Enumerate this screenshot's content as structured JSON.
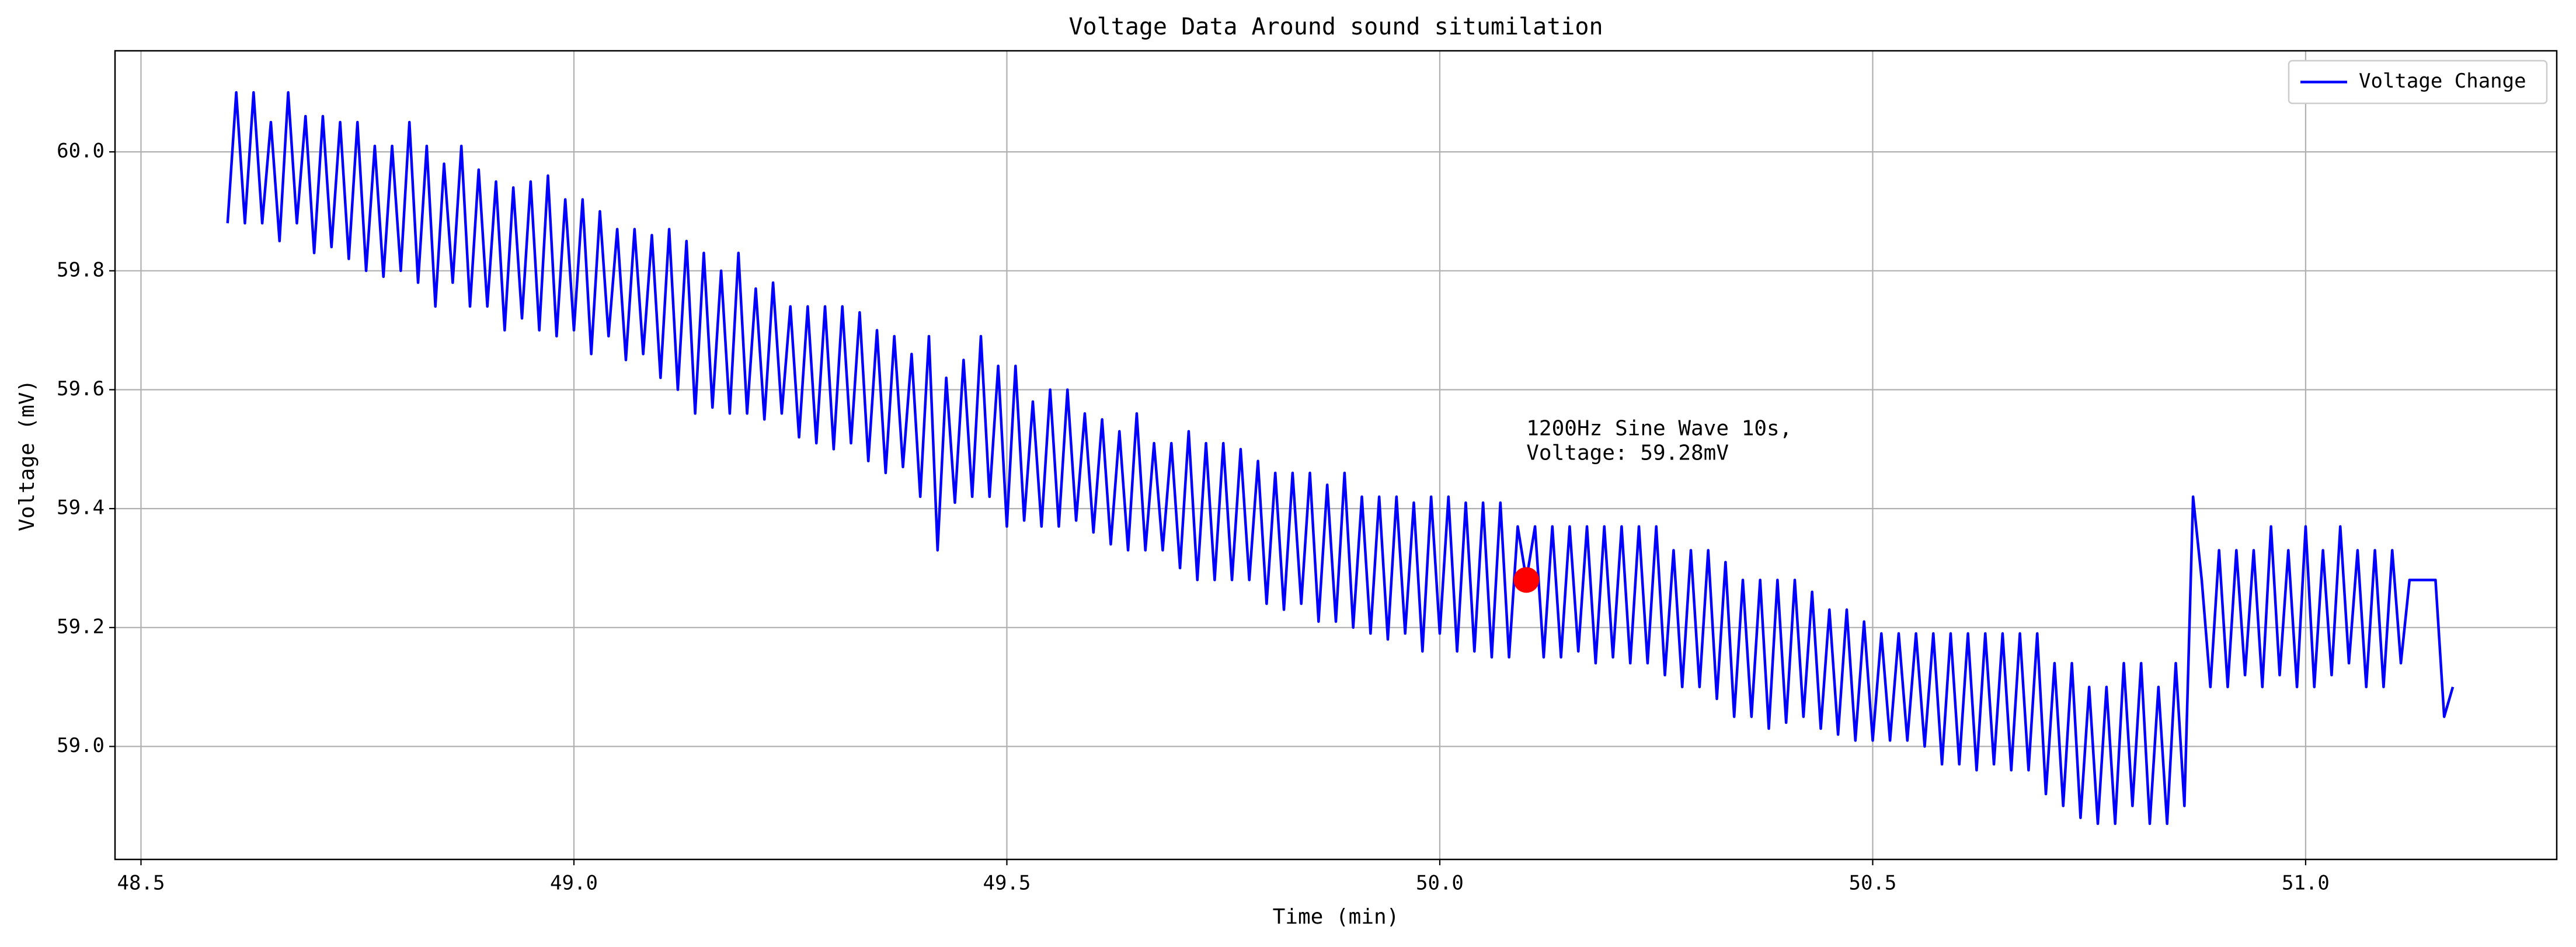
{
  "chart_data": {
    "type": "line",
    "title": "Voltage Data Around sound situmilation",
    "x_label": "Time (min)",
    "y_label": "Voltage (mV)",
    "x": [
      48.6,
      48.61,
      48.62,
      48.63,
      48.64,
      48.65,
      48.66,
      48.67,
      48.68,
      48.69,
      48.7,
      48.71,
      48.72,
      48.73,
      48.74,
      48.75,
      48.76,
      48.77,
      48.78,
      48.79,
      48.8,
      48.81,
      48.82,
      48.83,
      48.84,
      48.85,
      48.86,
      48.87,
      48.88,
      48.89,
      48.9,
      48.91,
      48.92,
      48.93,
      48.94,
      48.95,
      48.96,
      48.97,
      48.98,
      48.99,
      49.0,
      49.01,
      49.02,
      49.03,
      49.04,
      49.05,
      49.06,
      49.07,
      49.08,
      49.09,
      49.1,
      49.11,
      49.12,
      49.13,
      49.14,
      49.15,
      49.16,
      49.17,
      49.18,
      49.19,
      49.2,
      49.21,
      49.22,
      49.23,
      49.24,
      49.25,
      49.26,
      49.27,
      49.28,
      49.29,
      49.3,
      49.31,
      49.32,
      49.33,
      49.34,
      49.35,
      49.36,
      49.37,
      49.38,
      49.39,
      49.4,
      49.41,
      49.42,
      49.43,
      49.44,
      49.45,
      49.46,
      49.47,
      49.48,
      49.49,
      49.5,
      49.51,
      49.52,
      49.53,
      49.54,
      49.55,
      49.56,
      49.57,
      49.58,
      49.59,
      49.6,
      49.61,
      49.62,
      49.63,
      49.64,
      49.65,
      49.66,
      49.67,
      49.68,
      49.69,
      49.7,
      49.71,
      49.72,
      49.73,
      49.74,
      49.75,
      49.76,
      49.77,
      49.78,
      49.79,
      49.8,
      49.81,
      49.82,
      49.83,
      49.84,
      49.85,
      49.86,
      49.87,
      49.88,
      49.89,
      49.9,
      49.91,
      49.92,
      49.93,
      49.94,
      49.95,
      49.96,
      49.97,
      49.98,
      49.99,
      50.0,
      50.01,
      50.02,
      50.03,
      50.04,
      50.05,
      50.06,
      50.07,
      50.08,
      50.09,
      50.1,
      50.11,
      50.12,
      50.13,
      50.14,
      50.15,
      50.16,
      50.17,
      50.18,
      50.19,
      50.2,
      50.21,
      50.22,
      50.23,
      50.24,
      50.25,
      50.26,
      50.27,
      50.28,
      50.29,
      50.3,
      50.31,
      50.32,
      50.33,
      50.34,
      50.35,
      50.36,
      50.37,
      50.38,
      50.39,
      50.4,
      50.41,
      50.42,
      50.43,
      50.44,
      50.45,
      50.46,
      50.47,
      50.48,
      50.49,
      50.5,
      50.51,
      50.52,
      50.53,
      50.54,
      50.55,
      50.56,
      50.57,
      50.58,
      50.59,
      50.6,
      50.61,
      50.62,
      50.63,
      50.64,
      50.65,
      50.66,
      50.67,
      50.68,
      50.69,
      50.7,
      50.71,
      50.72,
      50.73,
      50.74,
      50.75,
      50.76,
      50.77,
      50.78,
      50.79,
      50.8,
      50.81,
      50.82,
      50.83,
      50.84,
      50.85,
      50.86,
      50.87,
      50.88,
      50.89,
      50.9,
      50.91,
      50.92,
      50.93,
      50.94,
      50.95,
      50.96,
      50.97,
      50.98,
      50.99,
      51.0,
      51.01,
      51.02,
      51.03,
      51.04,
      51.05,
      51.06,
      51.07,
      51.08,
      51.09,
      51.1,
      51.11,
      51.12,
      51.13,
      51.14,
      51.15,
      51.16,
      51.17
    ],
    "series": [
      {
        "name": "Voltage Change",
        "color": "#0000ff",
        "values": [
          59.88,
          60.1,
          59.88,
          60.1,
          59.88,
          60.05,
          59.85,
          60.1,
          59.88,
          60.06,
          59.83,
          60.06,
          59.84,
          60.05,
          59.82,
          60.05,
          59.8,
          60.01,
          59.79,
          60.01,
          59.8,
          60.05,
          59.78,
          60.01,
          59.74,
          59.98,
          59.78,
          60.01,
          59.74,
          59.97,
          59.74,
          59.95,
          59.7,
          59.94,
          59.72,
          59.95,
          59.7,
          59.96,
          59.69,
          59.92,
          59.7,
          59.92,
          59.66,
          59.9,
          59.69,
          59.87,
          59.65,
          59.87,
          59.66,
          59.86,
          59.62,
          59.87,
          59.6,
          59.85,
          59.56,
          59.83,
          59.57,
          59.8,
          59.56,
          59.83,
          59.56,
          59.77,
          59.55,
          59.78,
          59.56,
          59.74,
          59.52,
          59.74,
          59.51,
          59.74,
          59.5,
          59.74,
          59.51,
          59.73,
          59.48,
          59.7,
          59.46,
          59.69,
          59.47,
          59.66,
          59.42,
          59.69,
          59.33,
          59.62,
          59.41,
          59.65,
          59.42,
          59.69,
          59.42,
          59.64,
          59.37,
          59.64,
          59.38,
          59.58,
          59.37,
          59.6,
          59.37,
          59.6,
          59.38,
          59.56,
          59.36,
          59.55,
          59.34,
          59.53,
          59.33,
          59.56,
          59.33,
          59.51,
          59.33,
          59.51,
          59.3,
          59.53,
          59.28,
          59.51,
          59.28,
          59.51,
          59.28,
          59.5,
          59.28,
          59.48,
          59.24,
          59.46,
          59.23,
          59.46,
          59.24,
          59.46,
          59.21,
          59.44,
          59.21,
          59.46,
          59.2,
          59.42,
          59.19,
          59.42,
          59.18,
          59.42,
          59.19,
          59.41,
          59.16,
          59.42,
          59.19,
          59.42,
          59.16,
          59.41,
          59.16,
          59.41,
          59.15,
          59.41,
          59.15,
          59.37,
          59.28,
          59.37,
          59.15,
          59.37,
          59.15,
          59.37,
          59.16,
          59.37,
          59.14,
          59.37,
          59.15,
          59.37,
          59.14,
          59.37,
          59.14,
          59.37,
          59.12,
          59.33,
          59.1,
          59.33,
          59.1,
          59.33,
          59.08,
          59.31,
          59.05,
          59.28,
          59.05,
          59.28,
          59.03,
          59.28,
          59.04,
          59.28,
          59.05,
          59.26,
          59.03,
          59.23,
          59.02,
          59.23,
          59.01,
          59.21,
          59.01,
          59.19,
          59.01,
          59.19,
          59.01,
          59.19,
          59.0,
          59.19,
          58.97,
          59.19,
          58.97,
          59.19,
          58.96,
          59.19,
          58.97,
          59.19,
          58.96,
          59.19,
          58.96,
          59.19,
          58.92,
          59.14,
          58.9,
          59.14,
          58.88,
          59.1,
          58.87,
          59.1,
          58.87,
          59.14,
          58.9,
          59.14,
          58.87,
          59.1,
          58.87,
          59.14,
          58.9,
          59.42,
          59.28,
          59.1,
          59.33,
          59.1,
          59.33,
          59.12,
          59.33,
          59.1,
          59.37,
          59.12,
          59.33,
          59.1,
          59.37,
          59.1,
          59.33,
          59.12,
          59.37,
          59.14,
          59.33,
          59.1,
          59.33,
          59.1,
          59.33,
          59.14,
          59.28,
          59.28,
          59.28,
          59.28,
          59.05,
          59.1
        ]
      }
    ],
    "annotation": {
      "x": 50.1,
      "y": 59.28,
      "color": "#ff0000",
      "text": [
        "1200Hz Sine Wave 10s,",
        "Voltage: 59.28mV"
      ]
    },
    "xlim": [
      48.47,
      51.29
    ],
    "ylim": [
      58.81,
      60.17
    ],
    "xticks": [
      48.5,
      {
        "value": 49,
        "label": "49.0"
      },
      49.5,
      {
        "value": 50,
        "label": "50.0"
      },
      50.5,
      {
        "value": 51,
        "label": "51.0"
      }
    ],
    "yticks": [
      {
        "value": 59,
        "label": "59.0"
      },
      59.2,
      59.4,
      59.6,
      59.8,
      {
        "value": 60,
        "label": "60.0"
      }
    ],
    "grid": true,
    "legend": "upper right"
  }
}
